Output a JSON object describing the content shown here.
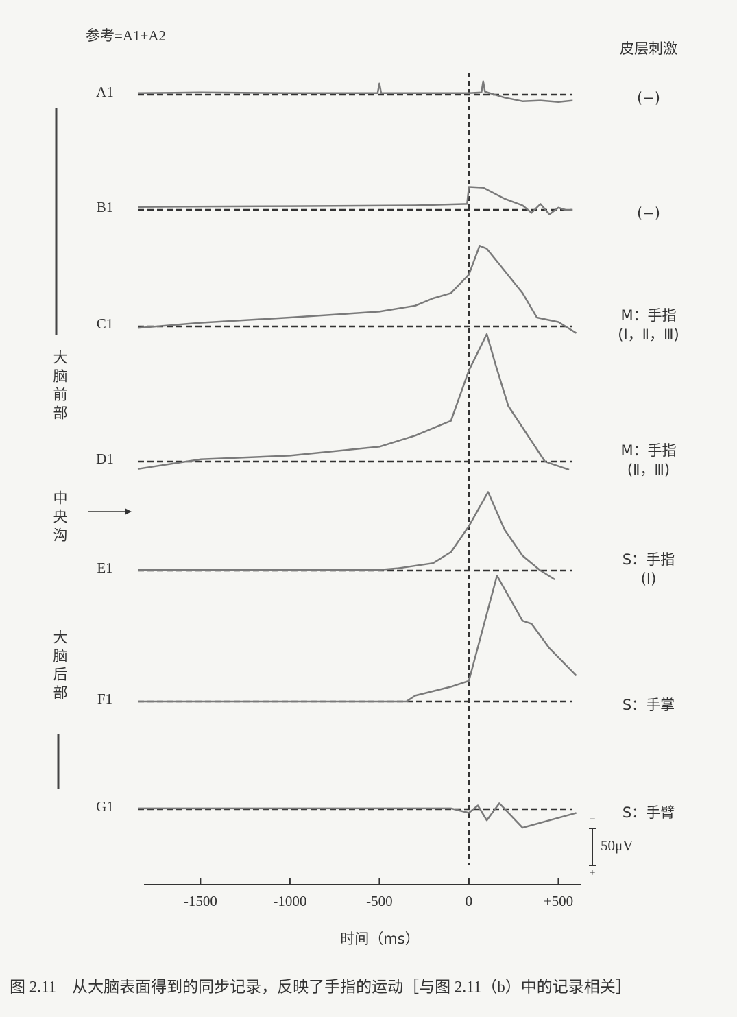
{
  "chart_data": {
    "type": "line",
    "reference": "参考=A1+A2",
    "right_header": "皮层刺激",
    "region_labels": [
      "大脑前部",
      "中央沟",
      "大脑后部"
    ],
    "xlabel": "时间（ms）",
    "caption": "图 2.11　从大脑表面得到的同步记录，反映了手指的运动［与图 2.11（b）中的记录相关］",
    "xlim": [
      -1850,
      640
    ],
    "xticks": [
      -1500,
      -1000,
      -500,
      0,
      {
        "value": 500,
        "label": "+500"
      }
    ],
    "scale_bar": {
      "value": 50,
      "label": "50μV",
      "top": "−",
      "bottom": "+"
    },
    "color": "#7a7a7a",
    "series": [
      {
        "name": "A1",
        "stim": [
          "(−)"
        ],
        "x": [
          -1850,
          -1500,
          -1000,
          -510,
          -500,
          -490,
          0,
          70,
          80,
          90,
          200,
          300,
          400,
          500,
          580
        ],
        "values": [
          -2,
          -3,
          -2,
          -2,
          -15,
          -2,
          -2,
          -3,
          -18,
          -4,
          4,
          9,
          8,
          10,
          8
        ]
      },
      {
        "name": "B1",
        "stim": [
          "(−)"
        ],
        "x": [
          -1850,
          -1000,
          -300,
          -10,
          0,
          80,
          200,
          300,
          350,
          400,
          450,
          500,
          540,
          580
        ],
        "values": [
          -4,
          -5,
          -6,
          -8,
          -31,
          -30,
          -15,
          -6,
          4,
          -8,
          6,
          -3,
          0,
          0
        ]
      },
      {
        "name": "C1",
        "stim": [
          "M：手指",
          "(Ⅰ，Ⅱ，Ⅲ)"
        ],
        "x": [
          -1850,
          -1500,
          -1000,
          -500,
          -300,
          -200,
          -100,
          0,
          60,
          100,
          200,
          300,
          380,
          500,
          600
        ],
        "values": [
          2,
          -5,
          -12,
          -20,
          -28,
          -38,
          -45,
          -70,
          -109,
          -105,
          -75,
          -45,
          -12,
          -6,
          9
        ]
      },
      {
        "name": "D1",
        "stim": [
          "M：手指",
          "(Ⅱ，Ⅲ)"
        ],
        "x": [
          -1850,
          -1500,
          -1000,
          -500,
          -300,
          -100,
          0,
          100,
          150,
          220,
          425,
          560
        ],
        "values": [
          10,
          -3,
          -8,
          -20,
          -35,
          -55,
          -123,
          -172,
          -130,
          -75,
          0,
          11
        ]
      },
      {
        "name": "E1",
        "stim": [
          "S：手指",
          "(Ⅰ)"
        ],
        "x": [
          -1850,
          -1000,
          -500,
          -400,
          -200,
          -100,
          0,
          107,
          200,
          300,
          400,
          480
        ],
        "values": [
          -1,
          -1,
          -1,
          -3,
          -10,
          -25,
          -60,
          -106,
          -55,
          -20,
          0,
          12
        ]
      },
      {
        "name": "F1",
        "stim": [
          "S：手掌"
        ],
        "x": [
          -1850,
          -1000,
          -350,
          -300,
          -100,
          0,
          157,
          300,
          350,
          450,
          600
        ],
        "values": [
          0,
          0,
          0,
          -8,
          -20,
          -28,
          -170,
          -109,
          -105,
          -72,
          -35
        ]
      },
      {
        "name": "G1",
        "stim": [
          "S：手臂"
        ],
        "x": [
          -1850,
          -1000,
          -100,
          0,
          50,
          100,
          170,
          300,
          450,
          600
        ],
        "values": [
          -1,
          -1,
          -1,
          5,
          -5,
          15,
          -8,
          25,
          15,
          5
        ]
      }
    ]
  }
}
